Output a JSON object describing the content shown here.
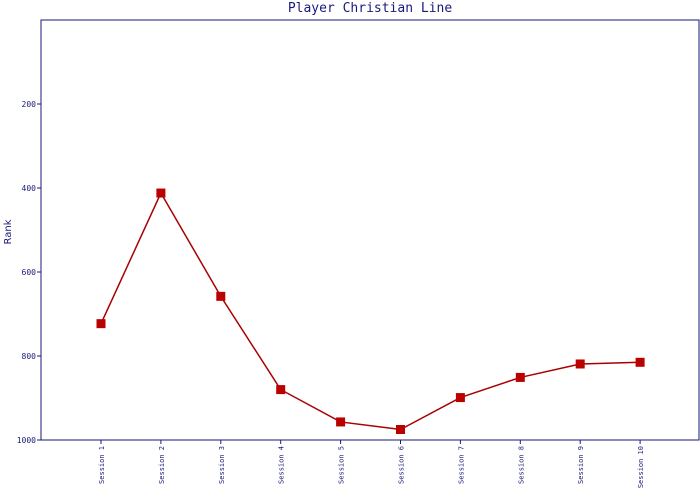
{
  "chart_data": {
    "type": "line",
    "title": "Player Christian Line",
    "xlabel": "",
    "ylabel": "Rank",
    "categories": [
      "Session 1",
      "Session 2",
      "Session 3",
      "Session 4",
      "Session 5",
      "Session 6",
      "Session 7",
      "Session 8",
      "Session 9",
      "Session 10"
    ],
    "series": [
      {
        "values": [
          723,
          412,
          658,
          880,
          957,
          975,
          899,
          851,
          819,
          815
        ]
      }
    ],
    "y_inverted": true,
    "ylim": [
      1000,
      0
    ],
    "yticks": [
      200,
      400,
      600,
      800,
      1000
    ],
    "grid": false,
    "line_color": "#aa0000",
    "marker_color": "#bb0000",
    "axis_color": "#1a1a7a"
  }
}
